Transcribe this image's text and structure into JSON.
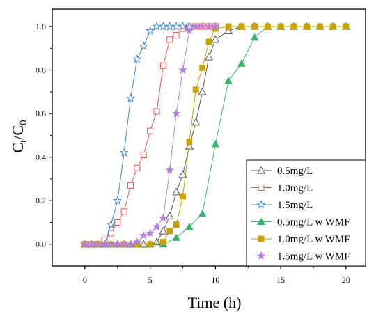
{
  "chart_data": {
    "type": "line",
    "xlabel": "Time (h)",
    "ylabel_main": "C",
    "ylabel_sub1": "t",
    "ylabel_mid": "/C",
    "ylabel_sub2": "0",
    "xlim": [
      -2.5,
      21.5
    ],
    "ylim": [
      -0.1,
      1.08
    ],
    "xticks": [
      0,
      5,
      10,
      15,
      20
    ],
    "yticks": [
      0.0,
      0.2,
      0.4,
      0.6,
      0.8,
      1.0
    ],
    "xtick_labels": [
      "0",
      "5",
      "10",
      "15",
      "20"
    ],
    "ytick_labels": [
      "0.0",
      "0.2",
      "0.4",
      "0.6",
      "0.8",
      "1.0"
    ],
    "grid": false,
    "legend_position": "bottom-right",
    "series": [
      {
        "name": "0.5mg/L",
        "color": "#555555",
        "marker": "triangle-open",
        "x": [
          0,
          0.5,
          1,
          1.5,
          2,
          2.5,
          3,
          3.5,
          4,
          4.5,
          5,
          5.5,
          6,
          6.5,
          7,
          7.5,
          8,
          8.5,
          9,
          9.5,
          10,
          11,
          12,
          13,
          14,
          15,
          16,
          17,
          18,
          19,
          20
        ],
        "y": [
          0,
          0,
          0,
          0,
          0,
          0,
          0,
          0,
          0,
          0,
          0,
          0.01,
          0.06,
          0.13,
          0.24,
          0.32,
          0.45,
          0.56,
          0.7,
          0.86,
          0.94,
          0.98,
          1.0,
          1.0,
          1.0,
          1.0,
          1.0,
          1.0,
          1.0,
          1.0,
          1.0
        ]
      },
      {
        "name": "1.0mg/L",
        "color": "#f0504f",
        "marker": "square-open",
        "x": [
          0,
          0.5,
          1,
          1.5,
          2,
          2.5,
          3,
          3.5,
          4,
          4.5,
          5,
          5.5,
          6,
          6.5,
          7,
          7.5,
          8,
          8.5,
          9,
          9.5,
          10
        ],
        "y": [
          0,
          0,
          0,
          0.02,
          0.05,
          0.1,
          0.15,
          0.27,
          0.35,
          0.41,
          0.52,
          0.61,
          0.82,
          0.94,
          0.96,
          0.99,
          1.0,
          1.0,
          1.0,
          1.0,
          1.0
        ]
      },
      {
        "name": "1.5mg/L",
        "color": "#3d86cf",
        "marker": "star-open",
        "x": [
          0,
          0.5,
          1,
          1.5,
          2,
          2.5,
          3,
          3.5,
          4,
          4.5,
          5,
          5.5,
          6,
          6.5,
          7,
          7.5,
          8
        ],
        "y": [
          0,
          0,
          0,
          0,
          0.09,
          0.2,
          0.42,
          0.67,
          0.85,
          0.91,
          0.98,
          1.0,
          1.0,
          1.0,
          1.0,
          1.0,
          1.0
        ]
      },
      {
        "name": "0.5mg/L w WMF",
        "color": "#3ab46f",
        "marker": "triangle-filled",
        "x": [
          0,
          1,
          2,
          3,
          4,
          5,
          6,
          7,
          8,
          9,
          10,
          11,
          12,
          13,
          14,
          15,
          16,
          17,
          18,
          19,
          20
        ],
        "y": [
          0,
          0,
          0,
          0,
          0,
          0,
          0,
          0.03,
          0.08,
          0.14,
          0.46,
          0.75,
          0.83,
          0.95,
          1.0,
          1.0,
          1.0,
          1.0,
          1.0,
          1.0,
          1.0
        ]
      },
      {
        "name": "1.0mg/L w WMF",
        "color": "#c9a100",
        "marker": "square-filled",
        "x": [
          0,
          1,
          2,
          3,
          4,
          5,
          6,
          6.5,
          7,
          7.5,
          8,
          8.5,
          9,
          9.5,
          10,
          11,
          12,
          13,
          14,
          15,
          16,
          17,
          18,
          19,
          20
        ],
        "y": [
          0,
          0,
          0,
          0,
          0,
          0,
          0.01,
          0.06,
          0.09,
          0.22,
          0.47,
          0.71,
          0.81,
          0.93,
          0.99,
          1.0,
          1.0,
          1.0,
          1.0,
          1.0,
          1.0,
          1.0,
          1.0,
          1.0,
          1.0
        ]
      },
      {
        "name": "1.5mg/L w WMF",
        "color": "#b77fdc",
        "marker": "star-filled",
        "x": [
          0,
          0.5,
          1,
          1.5,
          2,
          2.5,
          3,
          3.5,
          4,
          4.5,
          5,
          5.5,
          6,
          6.5,
          7,
          7.5,
          8,
          8.5,
          9,
          9.5,
          10
        ],
        "y": [
          0,
          0,
          0,
          0,
          0,
          0,
          0,
          0,
          0.01,
          0.04,
          0.05,
          0.08,
          0.12,
          0.34,
          0.6,
          0.8,
          0.98,
          1.0,
          1.0,
          1.0,
          1.0
        ]
      }
    ]
  }
}
